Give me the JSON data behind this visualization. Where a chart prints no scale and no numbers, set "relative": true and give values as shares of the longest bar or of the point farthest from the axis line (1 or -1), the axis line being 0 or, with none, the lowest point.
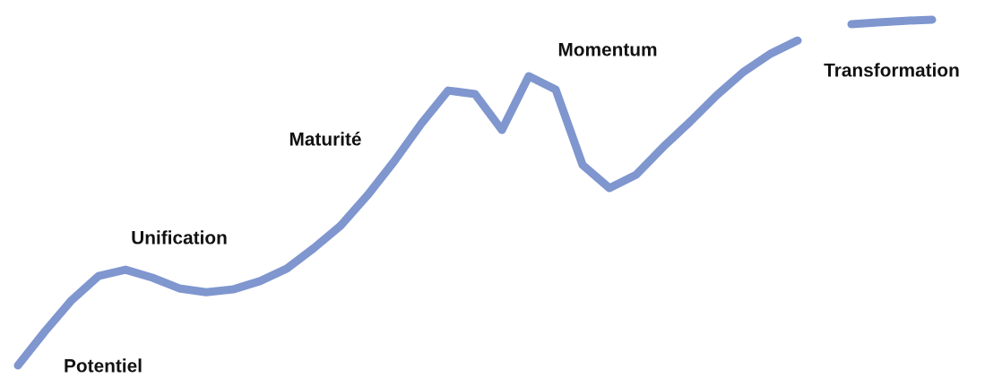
{
  "chart_data": {
    "type": "line",
    "relative": true,
    "categories": [
      null,
      null,
      null,
      null,
      null,
      null,
      null,
      null,
      null,
      null,
      null,
      null,
      null,
      null,
      null,
      null,
      null,
      null,
      null,
      null,
      null,
      null,
      null,
      null,
      null,
      null,
      null,
      null,
      null,
      null,
      null,
      null,
      null,
      null,
      null
    ],
    "series": [
      {
        "color": "#7f96cf",
        "values": [
          0.0,
          0.098,
          0.189,
          0.259,
          0.277,
          0.254,
          0.223,
          0.212,
          0.22,
          0.244,
          0.28,
          0.339,
          0.404,
          0.492,
          0.591,
          0.699,
          0.795,
          0.785,
          0.681,
          0.837,
          0.798,
          0.58,
          0.513,
          0.552,
          0.632,
          0.705,
          0.782,
          0.85,
          0.902,
          0.94,
          null,
          null,
          null,
          null,
          null
        ]
      },
      {
        "color": "#7f96cf",
        "values": [
          null,
          null,
          null,
          null,
          null,
          null,
          null,
          null,
          null,
          null,
          null,
          null,
          null,
          null,
          null,
          null,
          null,
          null,
          null,
          null,
          null,
          null,
          null,
          null,
          null,
          null,
          null,
          null,
          null,
          null,
          null,
          0.987,
          0.992,
          0.997,
          1.0
        ]
      }
    ],
    "annotations": [
      "Potentiel",
      "Unification",
      "Maturité",
      "Momentum",
      "Transformation"
    ],
    "grid": false,
    "legend": false,
    "marker": "none",
    "line_style": "solid"
  }
}
